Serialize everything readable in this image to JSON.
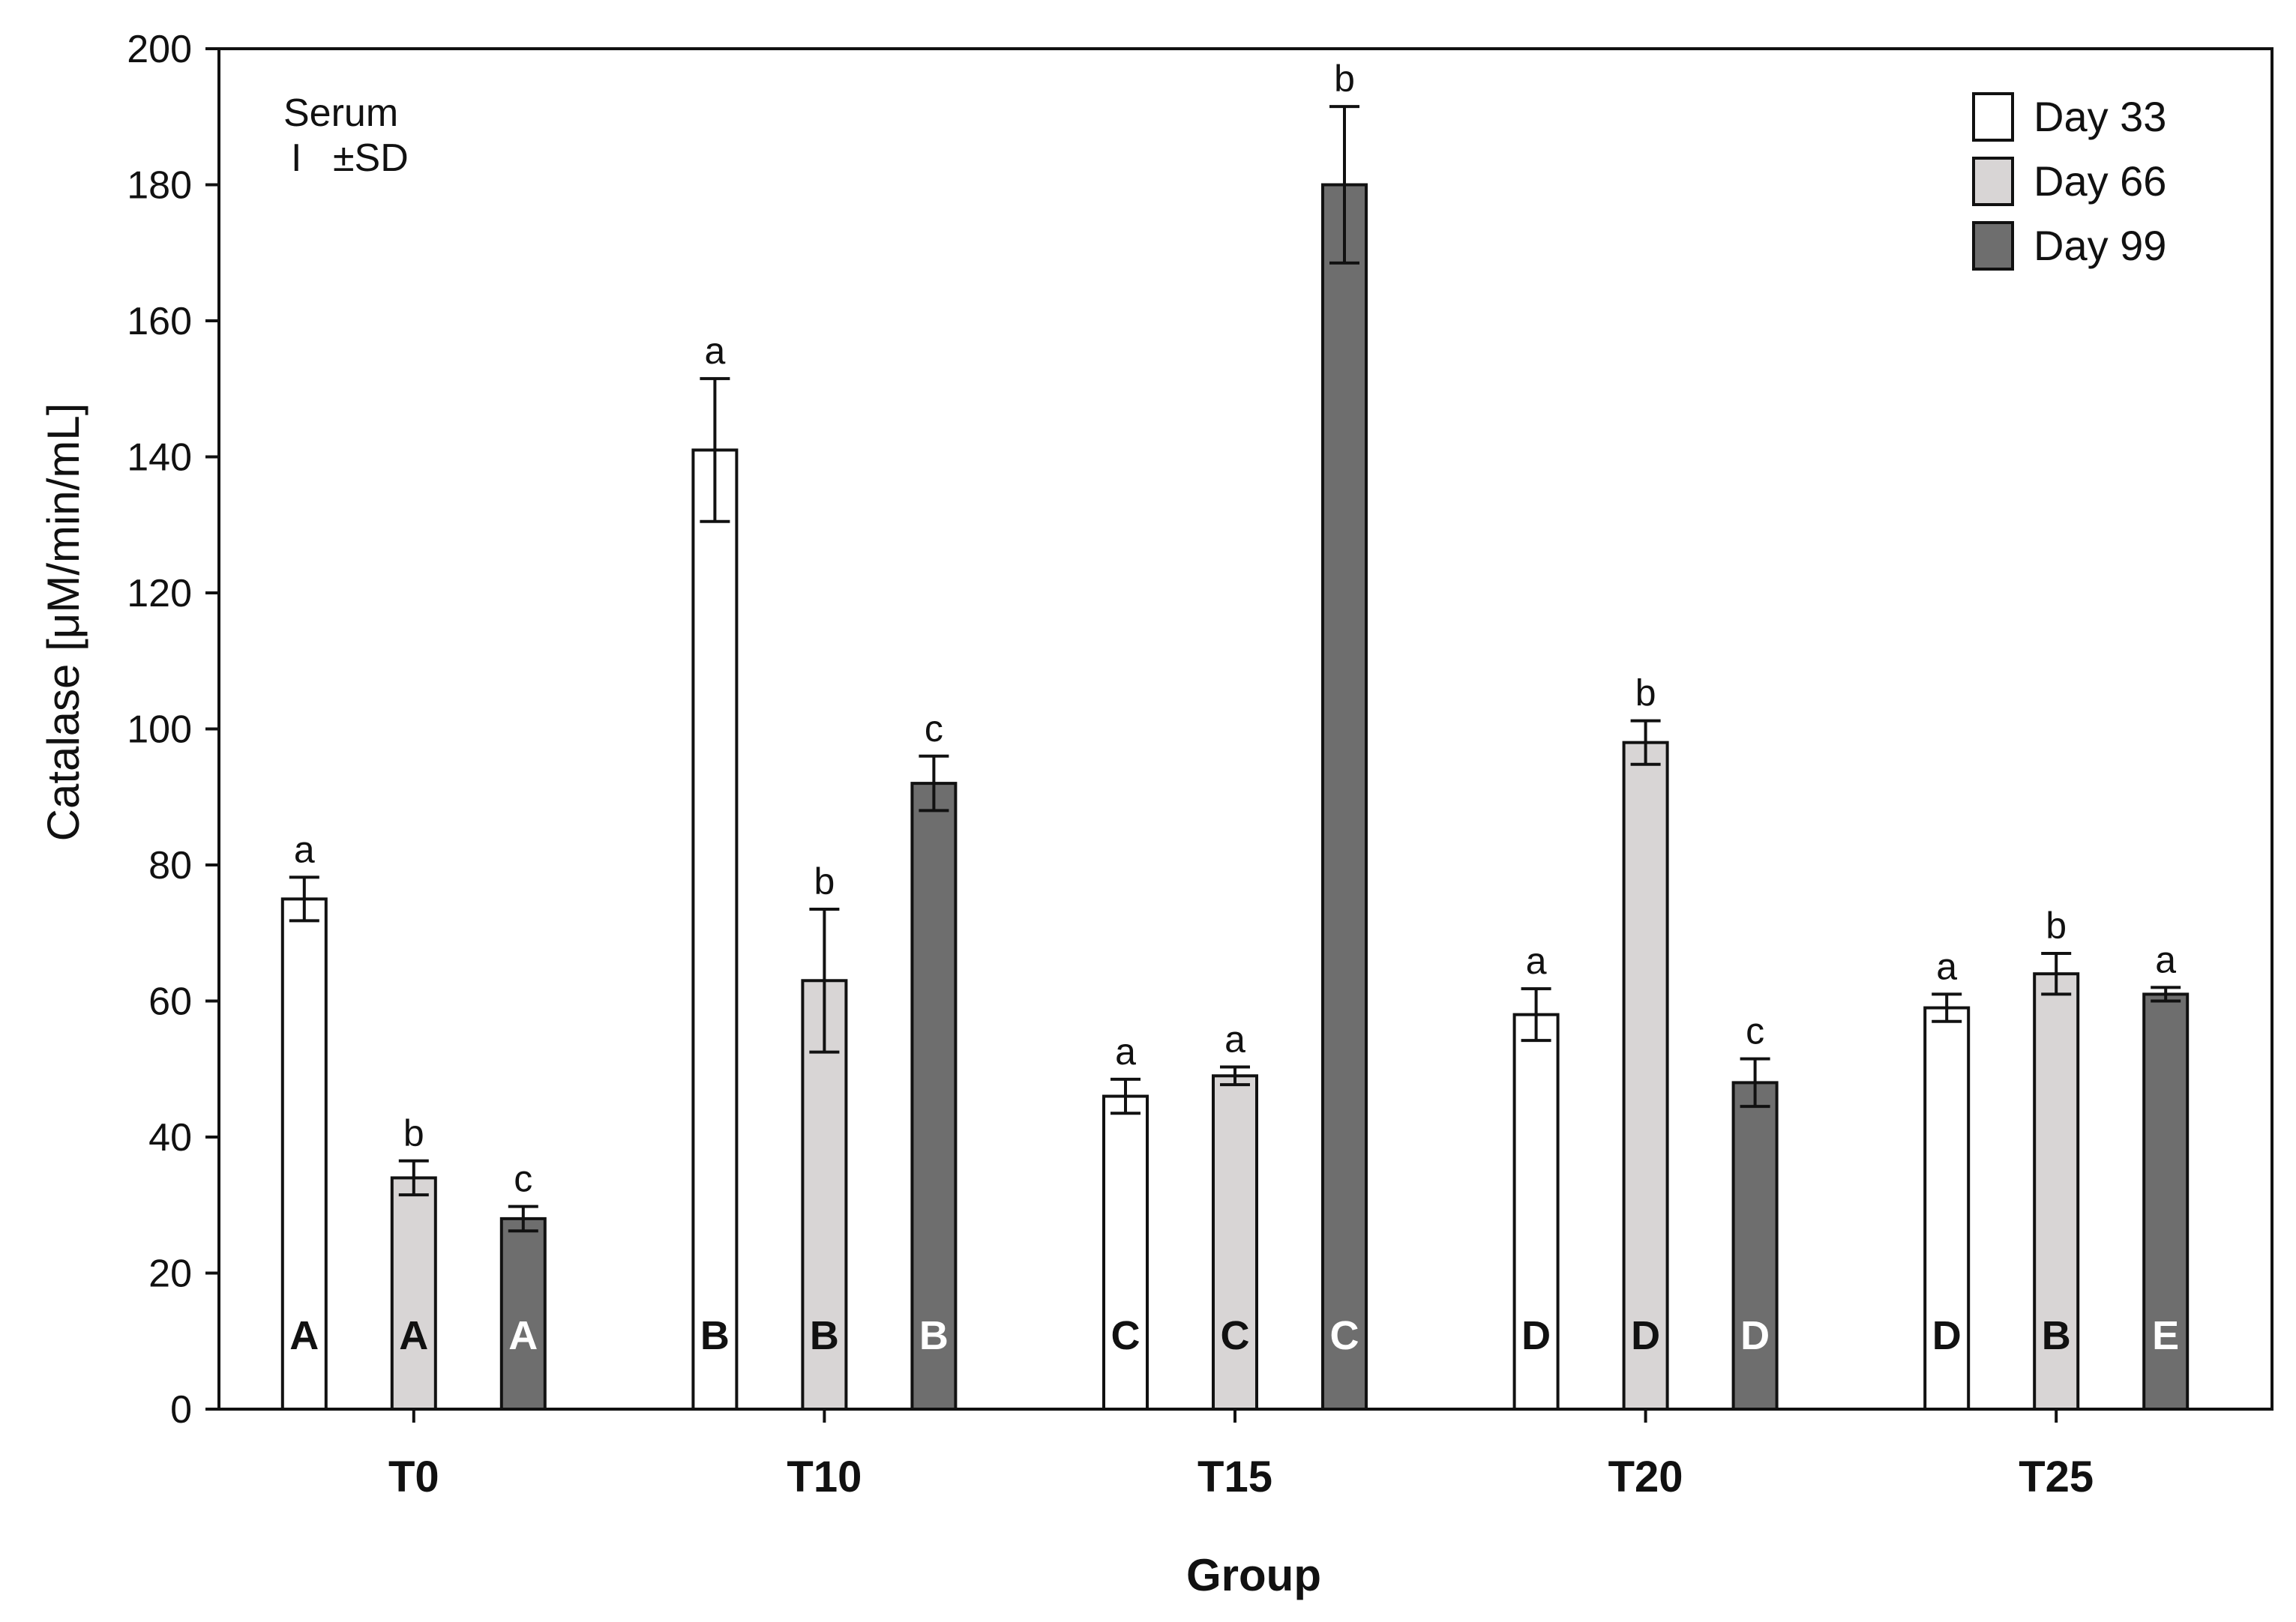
{
  "chart_data": {
    "type": "bar",
    "title": "",
    "xlabel": "Group",
    "ylabel": "Catalase [μM/min/mL]",
    "ylim": [
      0,
      200
    ],
    "yticks": [
      0,
      20,
      40,
      60,
      80,
      100,
      120,
      140,
      160,
      180,
      200
    ],
    "categories": [
      "T0",
      "T10",
      "T15",
      "T20",
      "T25"
    ],
    "legend_position": "top-right",
    "annotation": {
      "line1": "Serum",
      "line2": "±SD",
      "error_symbol": "I"
    },
    "series": [
      {
        "name": "Day 33",
        "color": "#ffffff",
        "values": [
          75,
          141,
          46,
          58,
          59
        ],
        "sd": [
          3.2,
          10.5,
          2.5,
          3.8,
          2.0
        ],
        "lower_letters": [
          "a",
          "a",
          "a",
          "a",
          "a"
        ],
        "upper_letters": [
          "A",
          "B",
          "C",
          "D",
          "D"
        ],
        "upper_letter_color": "#111111"
      },
      {
        "name": "Day 66",
        "color": "#d8d5d5",
        "values": [
          34,
          63,
          49,
          98,
          64
        ],
        "sd": [
          2.5,
          10.5,
          1.3,
          3.2,
          3.0
        ],
        "lower_letters": [
          "b",
          "b",
          "a",
          "b",
          "b"
        ],
        "upper_letters": [
          "A",
          "B",
          "C",
          "D",
          "B"
        ],
        "upper_letter_color": "#111111"
      },
      {
        "name": "Day 99",
        "color": "#6e6e6e",
        "values": [
          28,
          92,
          180,
          48,
          61
        ],
        "sd": [
          1.8,
          4.0,
          11.5,
          3.5,
          1.0
        ],
        "lower_letters": [
          "c",
          "c",
          "b",
          "c",
          "a"
        ],
        "upper_letters": [
          "A",
          "B",
          "C",
          "D",
          "E"
        ],
        "upper_letter_color": "#ffffff"
      }
    ]
  }
}
